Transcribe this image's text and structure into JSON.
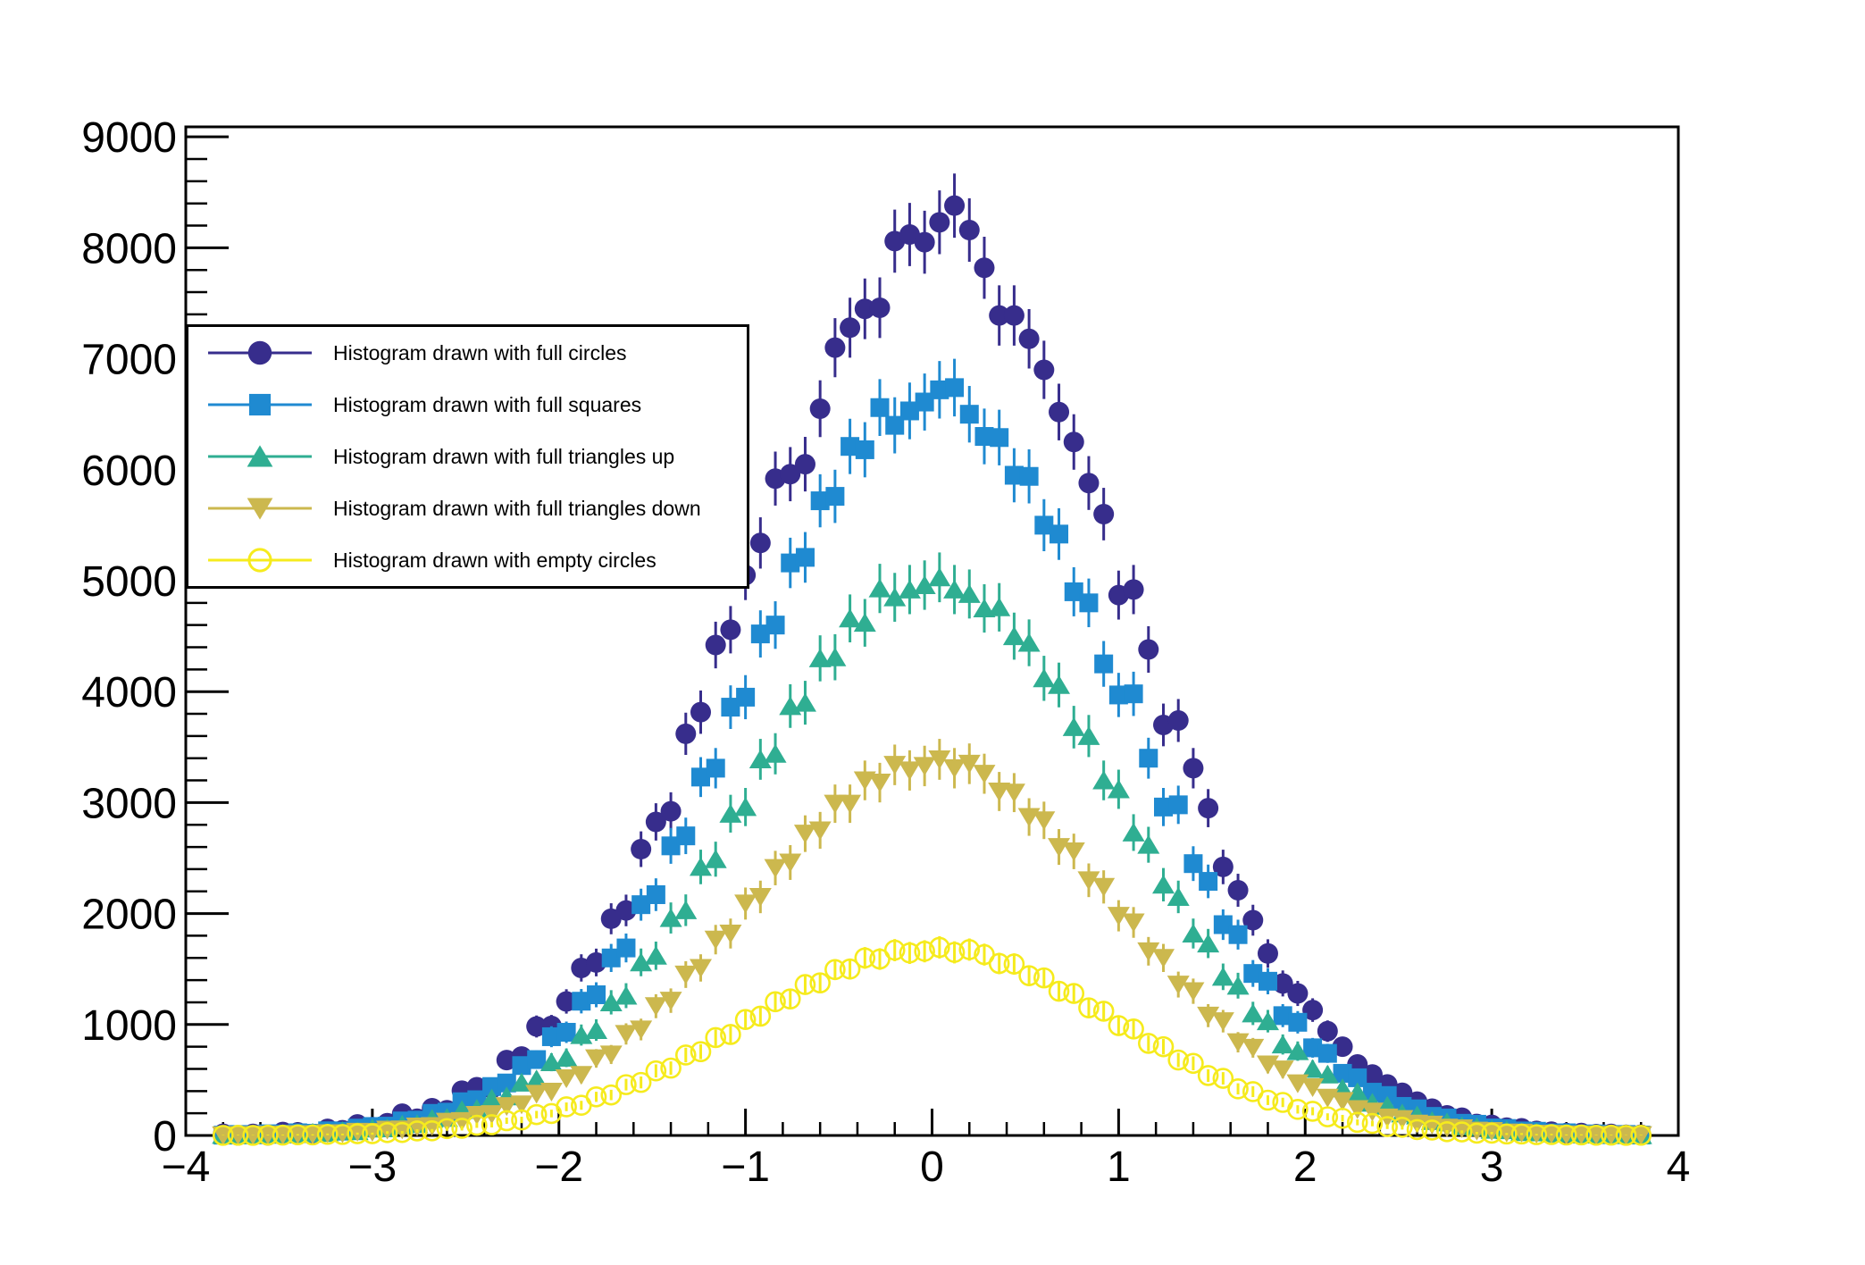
{
  "window": {
    "background": "#ffffff"
  },
  "chart_data": {
    "type": "scatter",
    "title": "",
    "xlabel": "",
    "ylabel": "",
    "xlim": [
      -4,
      4
    ],
    "ylim": [
      0,
      9090
    ],
    "grid": false,
    "legend_position": "top-left",
    "axis_color": "#000000",
    "bin_width": 0.08,
    "x_ticks": {
      "major": [
        -4,
        -3,
        -2,
        -1,
        0,
        1,
        2,
        3,
        4
      ],
      "labels": [
        "−4",
        "−3",
        "−2",
        "−1",
        "0",
        "1",
        "2",
        "3",
        "4"
      ],
      "minor_step": 0.2
    },
    "y_ticks": {
      "major": [
        0,
        1000,
        2000,
        3000,
        4000,
        5000,
        6000,
        7000,
        8000,
        9000
      ],
      "labels": [
        "0",
        "1000",
        "2000",
        "3000",
        "4000",
        "5000",
        "6000",
        "7000",
        "8000",
        "9000"
      ],
      "minor_step": 200
    },
    "x": [
      -3.8,
      -3.72,
      -3.64,
      -3.56,
      -3.48,
      -3.4,
      -3.32,
      -3.24,
      -3.16,
      -3.08,
      -3,
      -2.92,
      -2.84,
      -2.76,
      -2.68,
      -2.6,
      -2.52,
      -2.44,
      -2.36,
      -2.28,
      -2.2,
      -2.12,
      -2.04,
      -1.96,
      -1.88,
      -1.8,
      -1.72,
      -1.64,
      -1.56,
      -1.48,
      -1.4,
      -1.32,
      -1.24,
      -1.16,
      -1.08,
      -1,
      -0.92,
      -0.84,
      -0.76,
      -0.68,
      -0.6,
      -0.52,
      -0.44,
      -0.36,
      -0.28,
      -0.2,
      -0.12,
      -0.04,
      0.04,
      0.12,
      0.2,
      0.28,
      0.36,
      0.44,
      0.52,
      0.6,
      0.68,
      0.76,
      0.84,
      0.92,
      1,
      1.08,
      1.16,
      1.24,
      1.32,
      1.4,
      1.48,
      1.56,
      1.64,
      1.72,
      1.8,
      1.88,
      1.96,
      2.04,
      2.12,
      2.2,
      2.28,
      2.36,
      2.44,
      2.52,
      2.6,
      2.68,
      2.76,
      2.84,
      2.92,
      3,
      3.08,
      3.16,
      3.24,
      3.32,
      3.4,
      3.48,
      3.56,
      3.64,
      3.72,
      3.8
    ],
    "series": [
      {
        "label": "Histogram drawn with full circles",
        "marker": "full-circle",
        "color": "#372d8c",
        "err_factor": 10,
        "values": [
          15,
          1,
          14,
          1,
          31,
          28,
          10,
          59,
          47,
          100,
          75,
          111,
          196,
          151,
          246,
          227,
          404,
          435,
          424,
          679,
          712,
          982,
          987,
          1208,
          1510,
          1559,
          1953,
          2028,
          2580,
          2826,
          2922,
          3620,
          3815,
          4420,
          4558,
          5050,
          5340,
          5920,
          5960,
          6050,
          6550,
          7100,
          7280,
          7450,
          7460,
          8060,
          8120,
          8050,
          8230,
          8380,
          8160,
          7820,
          7390,
          7390,
          7180,
          6900,
          6520,
          6250,
          5880,
          5600,
          4870,
          4920,
          4380,
          3700,
          3740,
          3310,
          2950,
          2420,
          2210,
          1940,
          1640,
          1370,
          1280,
          1130,
          940,
          800,
          640,
          550,
          460,
          384,
          305,
          242,
          181,
          160,
          104,
          96,
          70,
          64,
          41,
          34,
          22,
          22,
          12,
          14,
          6,
          7
        ]
      },
      {
        "label": "Histogram drawn with full squares",
        "marker": "full-square",
        "color": "#1f8ad1",
        "err_factor": 10,
        "values": [
          3,
          9,
          6,
          15,
          13,
          24,
          20,
          42,
          39,
          66,
          81,
          84,
          131,
          138,
          199,
          210,
          304,
          322,
          441,
          473,
          630,
          684,
          890,
          930,
          1210,
          1268,
          1600,
          1690,
          2080,
          2170,
          2610,
          2700,
          3230,
          3310,
          3860,
          3950,
          4520,
          4600,
          5160,
          5210,
          5720,
          5760,
          6210,
          6180,
          6560,
          6400,
          6530,
          6610,
          6720,
          6740,
          6500,
          6300,
          6290,
          5950,
          5940,
          5500,
          5420,
          4900,
          4800,
          4250,
          3970,
          3980,
          3400,
          2960,
          2980,
          2450,
          2290,
          1900,
          1810,
          1460,
          1390,
          1080,
          1020,
          790,
          740,
          560,
          520,
          390,
          360,
          262,
          240,
          172,
          158,
          110,
          101,
          68,
          63,
          41,
          38,
          23,
          24,
          13,
          14,
          7,
          9,
          4
        ]
      },
      {
        "label": "Histogram drawn with full triangles up",
        "marker": "full-triangle-up",
        "color": "#2fae92",
        "err_factor": 10,
        "values": [
          5,
          2,
          8,
          6,
          14,
          12,
          25,
          22,
          39,
          38,
          62,
          64,
          98,
          103,
          150,
          158,
          228,
          240,
          332,
          352,
          476,
          505,
          660,
          700,
          905,
          950,
          1200,
          1260,
          1560,
          1620,
          1960,
          2030,
          2420,
          2490,
          2900,
          2960,
          3390,
          3440,
          3870,
          3900,
          4300,
          4310,
          4660,
          4620,
          4930,
          4850,
          4920,
          4960,
          5030,
          4920,
          4880,
          4750,
          4760,
          4500,
          4440,
          4120,
          4060,
          3680,
          3600,
          3200,
          3120,
          2730,
          2620,
          2260,
          2150,
          1820,
          1730,
          1430,
          1350,
          1100,
          1030,
          820,
          760,
          600,
          550,
          425,
          390,
          295,
          268,
          198,
          180,
          130,
          118,
          83,
          75,
          51,
          47,
          30,
          28,
          17,
          18,
          10,
          11,
          5,
          6,
          3
        ]
      },
      {
        "label": "Histogram drawn with full triangles down",
        "marker": "full-triangle-down",
        "color": "#ccb84e",
        "err_factor": 10,
        "values": [
          1,
          4,
          3,
          7,
          6,
          12,
          10,
          20,
          19,
          33,
          32,
          52,
          54,
          81,
          85,
          124,
          130,
          185,
          192,
          265,
          280,
          375,
          395,
          515,
          545,
          695,
          730,
          915,
          955,
          1165,
          1215,
          1450,
          1510,
          1765,
          1820,
          2090,
          2150,
          2410,
          2460,
          2720,
          2750,
          2990,
          2990,
          3200,
          3180,
          3340,
          3290,
          3330,
          3390,
          3310,
          3350,
          3260,
          3100,
          3090,
          2870,
          2840,
          2600,
          2560,
          2300,
          2240,
          1980,
          1920,
          1660,
          1600,
          1360,
          1300,
          1080,
          1030,
          840,
          790,
          640,
          595,
          470,
          435,
          340,
          310,
          238,
          215,
          162,
          148,
          107,
          98,
          70,
          64,
          43,
          40,
          26,
          25,
          15,
          15,
          8,
          9,
          5,
          5,
          2,
          3
        ]
      },
      {
        "label": "Histogram drawn with empty circles",
        "marker": "open-circle",
        "color": "#f6eb1d",
        "err_factor": 6,
        "values": [
          1,
          2,
          1,
          3,
          3,
          6,
          5,
          10,
          9,
          16,
          16,
          26,
          27,
          41,
          42,
          62,
          65,
          92,
          97,
          133,
          140,
          188,
          198,
          258,
          272,
          348,
          365,
          458,
          478,
          582,
          607,
          725,
          755,
          882,
          910,
          1045,
          1075,
          1205,
          1230,
          1360,
          1375,
          1495,
          1500,
          1600,
          1590,
          1670,
          1645,
          1660,
          1695,
          1650,
          1675,
          1630,
          1550,
          1545,
          1440,
          1420,
          1300,
          1280,
          1150,
          1120,
          990,
          960,
          830,
          800,
          680,
          650,
          540,
          515,
          420,
          395,
          318,
          298,
          235,
          218,
          168,
          155,
          118,
          108,
          80,
          74,
          53,
          49,
          34,
          32,
          21,
          21,
          13,
          13,
          7,
          8,
          4,
          5,
          2,
          3,
          1,
          2
        ]
      }
    ]
  }
}
